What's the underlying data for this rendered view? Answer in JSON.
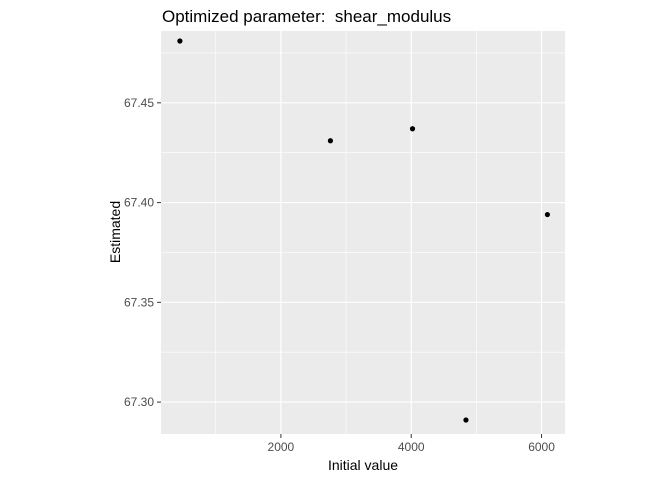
{
  "chart_data": {
    "type": "scatter",
    "title": "Optimized parameter:  shear_modulus",
    "xlabel": "Initial value",
    "ylabel": "Estimated",
    "xlim": [
      160,
      6360
    ],
    "ylim": [
      67.284,
      67.486
    ],
    "x_ticks": [
      2000,
      4000,
      6000
    ],
    "x_tick_labels": [
      "2000",
      "4000",
      "6000"
    ],
    "x_minor_ticks": [
      1000,
      3000,
      5000
    ],
    "y_ticks": [
      67.3,
      67.35,
      67.4,
      67.45
    ],
    "y_tick_labels": [
      "67.30",
      "67.35",
      "67.40",
      "67.45"
    ],
    "y_minor_ticks": [
      67.325,
      67.375,
      67.425,
      67.475
    ],
    "grid": true,
    "panel_color": "#ebebeb",
    "grid_color": "#ffffff",
    "point_color": "#000000",
    "series": [
      {
        "points": [
          {
            "x": 450,
            "y": 67.481
          },
          {
            "x": 2760,
            "y": 67.431
          },
          {
            "x": 4020,
            "y": 67.437
          },
          {
            "x": 6090,
            "y": 67.394
          },
          {
            "x": 4840,
            "y": 67.291
          }
        ]
      }
    ]
  }
}
